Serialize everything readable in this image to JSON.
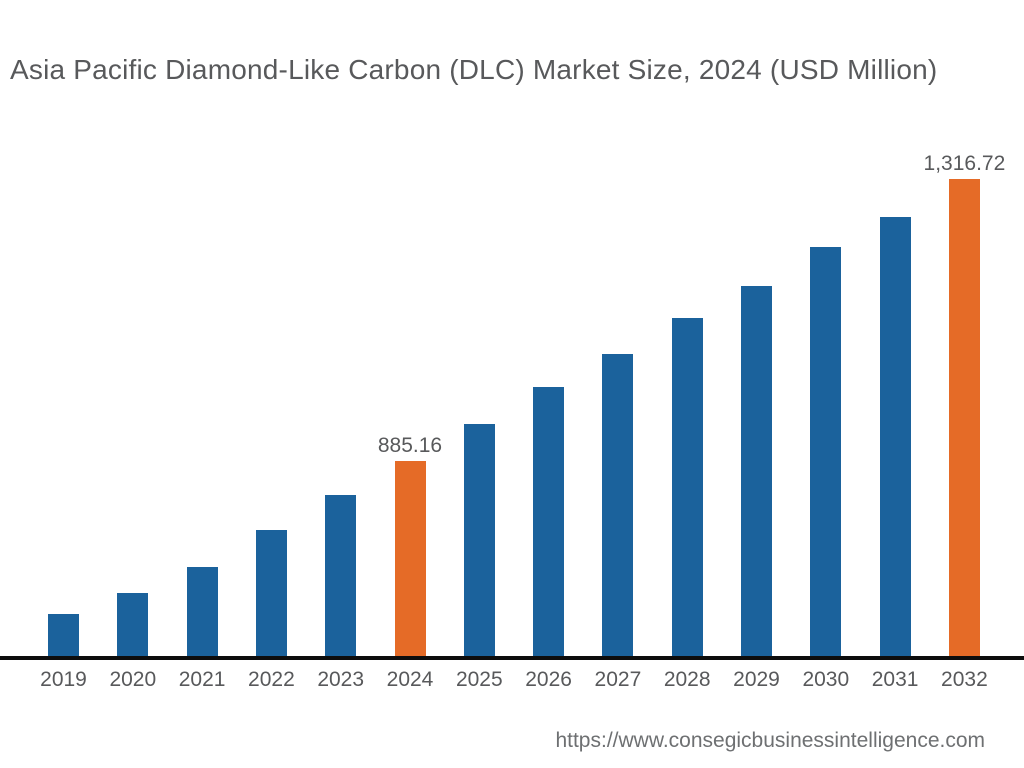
{
  "page": {
    "title": "Asia Pacific Diamond-Like Carbon (DLC) Market Size, 2024 (USD Million)",
    "source_url": "https://www.consegicbusinessintelligence.com"
  },
  "colors": {
    "bar_default": "#1B629C",
    "bar_highlight": "#E56B27",
    "title_text": "#58595B",
    "axis_line": "#0D0D0D",
    "source_text": "#6E7072"
  },
  "chart_data": {
    "type": "bar",
    "title": "Asia Pacific Diamond-Like Carbon (DLC) Market Size, 2024 (USD Million)",
    "xlabel": "",
    "ylabel": "",
    "categories": [
      "2019",
      "2020",
      "2021",
      "2022",
      "2023",
      "2024",
      "2025",
      "2026",
      "2027",
      "2028",
      "2029",
      "2030",
      "2031",
      "2032"
    ],
    "values": [
      651.3,
      683.4,
      723.2,
      779.8,
      833.3,
      885.16,
      941.9,
      998.5,
      1049.0,
      1104.1,
      1153.0,
      1212.7,
      1258.6,
      1316.72
    ],
    "labeled_points": [
      {
        "category": "2024",
        "label": "885.16"
      },
      {
        "category": "2032",
        "label": "1,316.72"
      }
    ],
    "highlighted_categories": [
      "2024",
      "2032"
    ],
    "ylim": [
      587,
      1316.72
    ],
    "grid": false,
    "legend": false,
    "y_axis_visible": false,
    "x_axis_line": true
  }
}
